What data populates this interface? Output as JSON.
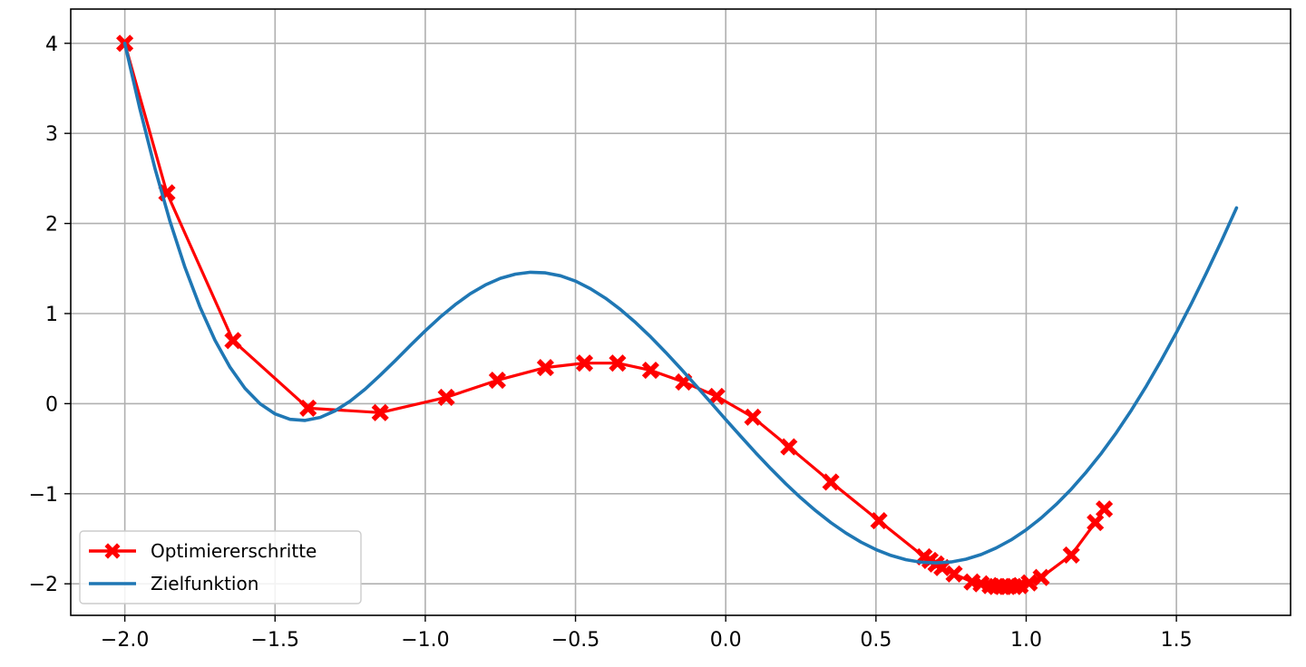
{
  "chart_data": {
    "type": "line",
    "title": "",
    "xlabel": "",
    "ylabel": "",
    "xlim": [
      -2.18,
      1.88
    ],
    "ylim": [
      -2.35,
      4.38
    ],
    "xticks": [
      -2.0,
      -1.5,
      -1.0,
      -0.5,
      0.0,
      0.5,
      1.0,
      1.5
    ],
    "yticks": [
      -2,
      -1,
      0,
      1,
      2,
      3,
      4
    ],
    "xtick_labels": [
      "−2.0",
      "−1.5",
      "−1.0",
      "−0.5",
      "0.0",
      "0.5",
      "1.0",
      "1.5"
    ],
    "ytick_labels": [
      "−2",
      "−1",
      "0",
      "1",
      "2",
      "3",
      "4"
    ],
    "grid": true,
    "legend_position": "lower-left",
    "series": [
      {
        "name": "Optimiererschritte",
        "color": "#ff0000",
        "marker": "X",
        "x": [
          -2.0,
          -1.86,
          -1.64,
          -1.39,
          -1.15,
          -0.93,
          -0.76,
          -0.6,
          -0.47,
          -0.36,
          -0.25,
          -0.14,
          -0.03,
          0.09,
          0.21,
          0.35,
          0.51,
          0.66,
          0.68,
          0.7,
          0.72,
          0.76,
          0.82,
          0.85,
          0.88,
          0.9,
          0.92,
          0.94,
          0.96,
          0.98,
          1.01,
          1.05,
          1.15,
          1.23,
          1.26
        ],
        "y": [
          4.0,
          2.34,
          0.7,
          -0.05,
          -0.1,
          0.07,
          0.26,
          0.4,
          0.45,
          0.45,
          0.37,
          0.24,
          0.08,
          -0.15,
          -0.48,
          -0.87,
          -1.3,
          -1.7,
          -1.74,
          -1.78,
          -1.82,
          -1.89,
          -1.98,
          -2.0,
          -2.02,
          -2.03,
          -2.03,
          -2.03,
          -2.03,
          -2.02,
          -1.99,
          -1.93,
          -1.68,
          -1.32,
          -1.17
        ]
      },
      {
        "name": "Zielfunktion",
        "color": "#1f77b4",
        "marker": "none",
        "x": [
          -2.0,
          -1.95,
          -1.9,
          -1.85,
          -1.8,
          -1.75,
          -1.7,
          -1.65,
          -1.6,
          -1.55,
          -1.5,
          -1.45,
          -1.4,
          -1.35,
          -1.3,
          -1.25,
          -1.2,
          -1.15,
          -1.1,
          -1.05,
          -1.0,
          -0.95,
          -0.9,
          -0.85,
          -0.8,
          -0.75,
          -0.7,
          -0.65,
          -0.6,
          -0.55,
          -0.5,
          -0.45,
          -0.4,
          -0.35,
          -0.3,
          -0.25,
          -0.2,
          -0.15,
          -0.1,
          -0.05,
          0.0,
          0.05,
          0.1,
          0.15,
          0.2,
          0.25,
          0.3,
          0.35,
          0.4,
          0.45,
          0.5,
          0.55,
          0.6,
          0.65,
          0.7,
          0.75,
          0.8,
          0.85,
          0.9,
          0.95,
          1.0,
          1.05,
          1.1,
          1.15,
          1.2,
          1.25,
          1.3,
          1.35,
          1.4,
          1.45,
          1.5,
          1.55,
          1.6,
          1.65,
          1.7
        ],
        "y": [
          4.0,
          3.273,
          2.614,
          2.028,
          1.514,
          1.073,
          0.704,
          0.404,
          0.17,
          -0.001,
          -0.114,
          -0.174,
          -0.186,
          -0.153,
          -0.08,
          0.028,
          0.162,
          0.315,
          0.478,
          0.645,
          0.808,
          0.962,
          1.1,
          1.22,
          1.318,
          1.391,
          1.438,
          1.459,
          1.452,
          1.419,
          1.36,
          1.276,
          1.17,
          1.044,
          0.9,
          0.741,
          0.57,
          0.39,
          0.203,
          0.014,
          -0.176,
          -0.363,
          -0.546,
          -0.722,
          -0.889,
          -1.046,
          -1.19,
          -1.321,
          -1.437,
          -1.537,
          -1.62,
          -1.685,
          -1.732,
          -1.76,
          -1.768,
          -1.757,
          -1.726,
          -1.675,
          -1.603,
          -1.512,
          -1.4,
          -1.27,
          -1.119,
          -0.949,
          -0.76,
          -0.551,
          -0.322,
          -0.073,
          0.196,
          0.484,
          0.79,
          1.113,
          1.451,
          1.805,
          2.173
        ]
      }
    ]
  }
}
